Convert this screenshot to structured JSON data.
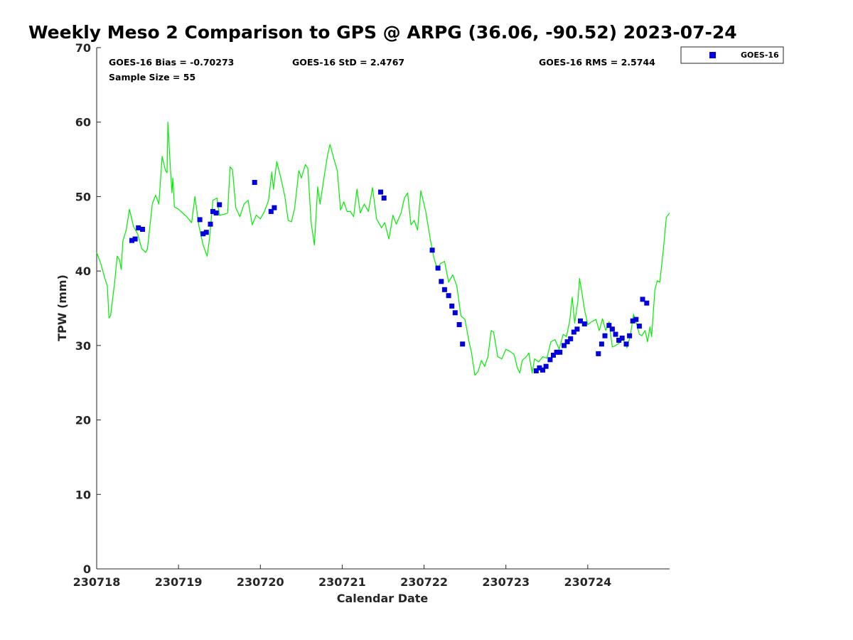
{
  "chart_data": {
    "type": "scatter",
    "title": "Weekly Meso 2 Comparison to GPS @ ARPG (36.06, -90.52) 2023-07-24",
    "xlabel": "Calendar Date",
    "ylabel": "TPW (mm)",
    "xlim": [
      0,
      7.0
    ],
    "ylim": [
      0,
      70
    ],
    "x_ticks": [
      {
        "value": 0,
        "label": "230718"
      },
      {
        "value": 1,
        "label": "230719"
      },
      {
        "value": 2,
        "label": "230720"
      },
      {
        "value": 3,
        "label": "230721"
      },
      {
        "value": 4,
        "label": "230722"
      },
      {
        "value": 5,
        "label": "230723"
      },
      {
        "value": 6,
        "label": "230724"
      }
    ],
    "y_ticks": [
      0,
      10,
      20,
      30,
      40,
      50,
      60,
      70
    ],
    "stats": {
      "bias": "GOES-16 Bias = -0.70273",
      "std": "GOES-16 StD = 2.4767",
      "rms": "GOES-16 RMS = 2.5744",
      "sample": "Sample Size = 55"
    },
    "legend": {
      "position": "outside-top-right",
      "entries": [
        "GOES-16"
      ]
    },
    "colors": {
      "goes": "#0000dd",
      "gps": "#00ee00"
    },
    "series": [
      {
        "name": "GOES-16",
        "kind": "scatter",
        "points": [
          [
            0.43,
            44.1
          ],
          [
            0.47,
            44.3
          ],
          [
            0.51,
            45.8
          ],
          [
            0.56,
            45.6
          ],
          [
            1.26,
            46.9
          ],
          [
            1.3,
            45.0
          ],
          [
            1.34,
            45.2
          ],
          [
            1.39,
            46.3
          ],
          [
            1.42,
            48.0
          ],
          [
            1.46,
            47.8
          ],
          [
            1.5,
            48.9
          ],
          [
            1.93,
            51.9
          ],
          [
            2.13,
            48.0
          ],
          [
            2.17,
            48.5
          ],
          [
            3.47,
            50.6
          ],
          [
            3.51,
            49.8
          ],
          [
            4.1,
            42.8
          ],
          [
            4.17,
            40.4
          ],
          [
            4.21,
            38.6
          ],
          [
            4.25,
            37.5
          ],
          [
            4.3,
            36.7
          ],
          [
            4.34,
            35.3
          ],
          [
            4.38,
            34.4
          ],
          [
            4.43,
            32.8
          ],
          [
            4.47,
            30.2
          ],
          [
            5.37,
            26.6
          ],
          [
            5.41,
            27.0
          ],
          [
            5.45,
            26.7
          ],
          [
            5.49,
            27.2
          ],
          [
            5.54,
            28.1
          ],
          [
            5.58,
            28.7
          ],
          [
            5.62,
            29.1
          ],
          [
            5.66,
            29.1
          ],
          [
            5.71,
            30.0
          ],
          [
            5.75,
            30.5
          ],
          [
            5.79,
            30.9
          ],
          [
            5.83,
            31.8
          ],
          [
            5.87,
            32.2
          ],
          [
            5.91,
            33.3
          ],
          [
            5.96,
            32.9
          ],
          [
            6.13,
            28.9
          ],
          [
            6.17,
            30.2
          ],
          [
            6.21,
            31.3
          ],
          [
            6.26,
            32.7
          ],
          [
            6.3,
            32.2
          ],
          [
            6.34,
            31.5
          ],
          [
            6.38,
            30.7
          ],
          [
            6.42,
            31.0
          ],
          [
            6.47,
            30.2
          ],
          [
            6.51,
            31.3
          ],
          [
            6.55,
            33.3
          ],
          [
            6.59,
            33.5
          ],
          [
            6.63,
            32.6
          ],
          [
            6.67,
            36.2
          ],
          [
            6.72,
            35.7
          ]
        ]
      },
      {
        "name": "GPS",
        "kind": "line",
        "points": [
          [
            0.0,
            42.5
          ],
          [
            0.05,
            41.0
          ],
          [
            0.1,
            39.0
          ],
          [
            0.13,
            38.0
          ],
          [
            0.15,
            33.7
          ],
          [
            0.17,
            34.0
          ],
          [
            0.22,
            38.5
          ],
          [
            0.25,
            42.0
          ],
          [
            0.28,
            41.5
          ],
          [
            0.3,
            40.2
          ],
          [
            0.32,
            44.0
          ],
          [
            0.36,
            45.5
          ],
          [
            0.4,
            48.3
          ],
          [
            0.45,
            46.0
          ],
          [
            0.5,
            45.0
          ],
          [
            0.55,
            43.0
          ],
          [
            0.6,
            42.5
          ],
          [
            0.62,
            43.0
          ],
          [
            0.68,
            49.0
          ],
          [
            0.72,
            50.2
          ],
          [
            0.76,
            49.0
          ],
          [
            0.8,
            55.4
          ],
          [
            0.84,
            53.5
          ],
          [
            0.86,
            53.2
          ],
          [
            0.87,
            60.0
          ],
          [
            0.9,
            54.0
          ],
          [
            0.92,
            50.5
          ],
          [
            0.93,
            52.5
          ],
          [
            0.95,
            48.6
          ],
          [
            1.0,
            48.3
          ],
          [
            1.05,
            47.8
          ],
          [
            1.1,
            47.3
          ],
          [
            1.16,
            46.5
          ],
          [
            1.2,
            50.0
          ],
          [
            1.25,
            46.0
          ],
          [
            1.3,
            43.5
          ],
          [
            1.35,
            42.0
          ],
          [
            1.38,
            44.5
          ],
          [
            1.42,
            49.5
          ],
          [
            1.47,
            49.8
          ],
          [
            1.5,
            47.5
          ],
          [
            1.55,
            47.6
          ],
          [
            1.6,
            47.8
          ],
          [
            1.63,
            54.0
          ],
          [
            1.66,
            53.6
          ],
          [
            1.7,
            48.5
          ],
          [
            1.75,
            47.3
          ],
          [
            1.8,
            49.0
          ],
          [
            1.85,
            49.5
          ],
          [
            1.9,
            46.2
          ],
          [
            1.95,
            47.5
          ],
          [
            2.0,
            47.0
          ],
          [
            2.05,
            48.0
          ],
          [
            2.1,
            49.5
          ],
          [
            2.14,
            53.3
          ],
          [
            2.16,
            51.0
          ],
          [
            2.2,
            54.7
          ],
          [
            2.25,
            52.5
          ],
          [
            2.3,
            50.0
          ],
          [
            2.34,
            46.8
          ],
          [
            2.38,
            46.6
          ],
          [
            2.42,
            48.5
          ],
          [
            2.47,
            53.5
          ],
          [
            2.5,
            52.5
          ],
          [
            2.55,
            54.3
          ],
          [
            2.58,
            53.8
          ],
          [
            2.62,
            46.5
          ],
          [
            2.66,
            43.5
          ],
          [
            2.7,
            51.3
          ],
          [
            2.73,
            49.0
          ],
          [
            2.77,
            52.0
          ],
          [
            2.82,
            55.5
          ],
          [
            2.85,
            57.0
          ],
          [
            2.9,
            55.0
          ],
          [
            2.94,
            53.5
          ],
          [
            2.98,
            48.2
          ],
          [
            3.02,
            49.3
          ],
          [
            3.06,
            48.0
          ],
          [
            3.1,
            48.0
          ],
          [
            3.14,
            47.3
          ],
          [
            3.18,
            51.0
          ],
          [
            3.22,
            47.8
          ],
          [
            3.27,
            49.0
          ],
          [
            3.32,
            48.0
          ],
          [
            3.37,
            51.2
          ],
          [
            3.42,
            47.0
          ],
          [
            3.48,
            45.8
          ],
          [
            3.52,
            46.5
          ],
          [
            3.57,
            44.3
          ],
          [
            3.62,
            47.5
          ],
          [
            3.66,
            46.3
          ],
          [
            3.72,
            47.8
          ],
          [
            3.76,
            49.8
          ],
          [
            3.8,
            50.5
          ],
          [
            3.84,
            46.2
          ],
          [
            3.88,
            46.8
          ],
          [
            3.92,
            45.5
          ],
          [
            3.96,
            50.8
          ],
          [
            4.02,
            48.0
          ],
          [
            4.08,
            44.0
          ],
          [
            4.12,
            41.8
          ],
          [
            4.16,
            40.3
          ],
          [
            4.2,
            41.0
          ],
          [
            4.25,
            41.3
          ],
          [
            4.3,
            38.5
          ],
          [
            4.35,
            39.5
          ],
          [
            4.4,
            38.0
          ],
          [
            4.45,
            34.0
          ],
          [
            4.5,
            33.5
          ],
          [
            4.55,
            30.5
          ],
          [
            4.58,
            29.0
          ],
          [
            4.62,
            26.0
          ],
          [
            4.66,
            26.5
          ],
          [
            4.7,
            28.0
          ],
          [
            4.74,
            27.2
          ],
          [
            4.78,
            28.5
          ],
          [
            4.82,
            32.0
          ],
          [
            4.85,
            31.8
          ],
          [
            4.9,
            28.5
          ],
          [
            4.95,
            28.2
          ],
          [
            5.0,
            29.5
          ],
          [
            5.05,
            29.2
          ],
          [
            5.1,
            28.8
          ],
          [
            5.14,
            27.0
          ],
          [
            5.17,
            26.3
          ],
          [
            5.2,
            28.0
          ],
          [
            5.25,
            28.5
          ],
          [
            5.28,
            29.0
          ],
          [
            5.32,
            26.3
          ],
          [
            5.35,
            28.2
          ],
          [
            5.4,
            27.8
          ],
          [
            5.45,
            28.5
          ],
          [
            5.5,
            28.3
          ],
          [
            5.55,
            30.5
          ],
          [
            5.6,
            30.8
          ],
          [
            5.65,
            29.5
          ],
          [
            5.7,
            31.5
          ],
          [
            5.74,
            31.2
          ],
          [
            5.78,
            33.3
          ],
          [
            5.81,
            36.5
          ],
          [
            5.84,
            33.0
          ],
          [
            5.88,
            36.0
          ],
          [
            5.9,
            39.0
          ],
          [
            5.93,
            37.0
          ],
          [
            5.96,
            34.8
          ],
          [
            6.0,
            32.8
          ],
          [
            6.05,
            33.2
          ],
          [
            6.1,
            33.5
          ],
          [
            6.14,
            32.0
          ],
          [
            6.18,
            33.6
          ],
          [
            6.22,
            32.0
          ],
          [
            6.26,
            33.2
          ],
          [
            6.3,
            29.8
          ],
          [
            6.34,
            30.0
          ],
          [
            6.38,
            30.3
          ],
          [
            6.43,
            30.8
          ],
          [
            6.48,
            29.7
          ],
          [
            6.52,
            31.3
          ],
          [
            6.56,
            34.2
          ],
          [
            6.6,
            32.8
          ],
          [
            6.63,
            31.5
          ],
          [
            6.66,
            31.3
          ],
          [
            6.7,
            32.0
          ],
          [
            6.73,
            30.5
          ],
          [
            6.76,
            32.5
          ],
          [
            6.78,
            31.2
          ],
          [
            6.82,
            37.5
          ],
          [
            6.85,
            38.7
          ],
          [
            6.88,
            38.5
          ],
          [
            6.92,
            42.5
          ],
          [
            6.96,
            47.2
          ],
          [
            7.0,
            47.8
          ]
        ]
      }
    ]
  }
}
